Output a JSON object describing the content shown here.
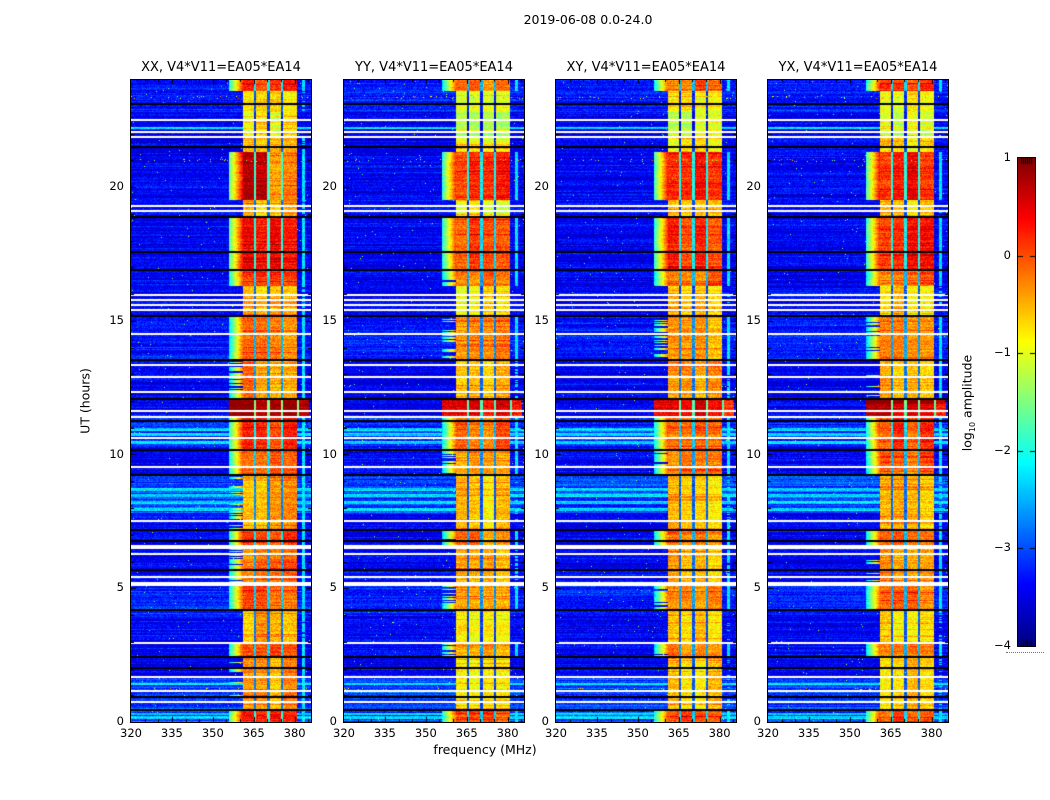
{
  "figure": {
    "suptitle": "2019-06-08 0.0-24.0",
    "background": "#ffffff",
    "text_color": "#000000"
  },
  "chart_data": {
    "type": "heatmap",
    "description": "Four dynamic-spectrum (waterfall) panels of visibility amplitude vs frequency and time for polarization products of baseline V4*V11 = EA05*EA14, 2019-06-08 0-24 UT, jet colormap. Strong RFI band near 361-381 MHz with four sub-columns, white data-gap rows, black flagged rows, and a very bright wide burst near 11.4-12.1 UT.",
    "colormap": "jet",
    "panels": [
      {
        "id": "XX",
        "title": "XX, V4*V11=EA05*EA14",
        "band_offset": 0.3,
        "seed": 101
      },
      {
        "id": "YY",
        "title": "YY, V4*V11=EA05*EA14",
        "band_offset": 0.0,
        "seed": 202
      },
      {
        "id": "XY",
        "title": "XY, V4*V11=EA05*EA14",
        "band_offset": 0.08,
        "seed": 303
      },
      {
        "id": "YX",
        "title": "YX, V4*V11=EA05*EA14",
        "band_offset": 0.15,
        "seed": 404
      }
    ],
    "x_axis": {
      "label": "frequency (MHz)",
      "range": [
        320,
        386
      ],
      "major_ticks": [
        320,
        335,
        350,
        365,
        380
      ],
      "minor_step": 5
    },
    "y_axis": {
      "label": "UT (hours)",
      "range": [
        0,
        24
      ],
      "major_ticks": [
        0,
        5,
        10,
        15,
        20
      ],
      "minor_step": 1
    },
    "colorbar": {
      "label_main": "log",
      "label_sub": "10",
      "label_rest": " amplitude",
      "range": [
        -4,
        1
      ],
      "ticks": [
        1,
        0,
        -1,
        -2,
        -3,
        -4
      ],
      "dash_ticks": [
        0,
        -1,
        -2,
        -3
      ]
    },
    "rfi_band": {
      "f_lo": 361.0,
      "f_hi": 380.7,
      "wide_f_lo": 355.8,
      "wide_f_hi": 385.4,
      "separators": [
        365.45,
        370.45,
        375.45
      ],
      "sep_half_width": 0.45,
      "narrow_line": [
        382.7,
        383.8
      ]
    },
    "band_blocks": [
      {
        "t0": 23.6,
        "t1": 24.0,
        "v": -0.15
      },
      {
        "t0": 22.8,
        "t1": 23.6,
        "v": -0.95
      },
      {
        "t0": 21.9,
        "t1": 22.8,
        "v": -1.25
      },
      {
        "t0": 21.3,
        "t1": 21.9,
        "v": -0.9
      },
      {
        "t0": 19.5,
        "t1": 21.3,
        "v": 0.15,
        "cols": {
          "XX": [
            0.3,
            0.22,
            -0.85,
            -0.7
          ]
        }
      },
      {
        "t0": 18.9,
        "t1": 19.5,
        "v": -0.85
      },
      {
        "t0": 16.9,
        "t1": 18.9,
        "v": 0.02
      },
      {
        "t0": 16.3,
        "t1": 16.9,
        "v": -0.3
      },
      {
        "t0": 15.2,
        "t1": 16.3,
        "v": -0.8
      },
      {
        "t0": 13.5,
        "t1": 15.2,
        "v": -0.45
      },
      {
        "t0": 12.1,
        "t1": 13.5,
        "v": -0.6
      },
      {
        "t0": 11.35,
        "t1": 12.1,
        "v": 0.5,
        "wide": true
      },
      {
        "t0": 10.2,
        "t1": 11.35,
        "v": -0.15
      },
      {
        "t0": 9.2,
        "t1": 10.2,
        "v": -0.35
      },
      {
        "t0": 7.2,
        "t1": 9.2,
        "v": -0.7
      },
      {
        "t0": 6.5,
        "t1": 7.2,
        "v": -0.25
      },
      {
        "t0": 5.2,
        "t1": 6.5,
        "v": -0.6
      },
      {
        "t0": 4.2,
        "t1": 5.2,
        "v": -0.35
      },
      {
        "t0": 3.0,
        "t1": 4.2,
        "v": -0.8
      },
      {
        "t0": 2.4,
        "t1": 3.0,
        "v": -0.35
      },
      {
        "t0": 0.5,
        "t1": 2.4,
        "v": -0.75
      },
      {
        "t0": 0.0,
        "t1": 0.5,
        "v": -0.05
      }
    ],
    "gap_rows": [
      [
        22.5,
        0.09
      ],
      [
        22.06,
        0.09
      ],
      [
        21.87,
        0.09
      ],
      [
        19.29,
        0.09
      ],
      [
        19.1,
        0.09
      ],
      [
        15.96,
        0.08
      ],
      [
        15.78,
        0.08
      ],
      [
        15.59,
        0.08
      ],
      [
        15.4,
        0.08
      ],
      [
        14.5,
        0.09
      ],
      [
        13.35,
        0.09
      ],
      [
        12.9,
        0.08
      ],
      [
        12.34,
        0.09
      ],
      [
        11.63,
        0.09
      ],
      [
        11.4,
        0.08
      ],
      [
        10.62,
        0.09
      ],
      [
        9.53,
        0.09
      ],
      [
        7.51,
        0.1
      ],
      [
        6.54,
        0.16
      ],
      [
        6.28,
        0.09
      ],
      [
        5.42,
        0.09
      ],
      [
        5.16,
        0.16
      ],
      [
        2.95,
        0.1
      ],
      [
        1.68,
        0.08
      ],
      [
        1.16,
        0.09
      ],
      [
        0.75,
        0.09
      ]
    ],
    "flagged_rows": [
      [
        23.1,
        0.06
      ],
      [
        21.5,
        0.06
      ],
      [
        18.88,
        0.07
      ],
      [
        17.57,
        0.05
      ],
      [
        16.9,
        0.05
      ],
      [
        15.18,
        0.06
      ],
      [
        13.53,
        0.05
      ],
      [
        12.07,
        0.07
      ],
      [
        11.25,
        0.06
      ],
      [
        10.17,
        0.06
      ],
      [
        9.23,
        0.05
      ],
      [
        7.18,
        0.06
      ],
      [
        6.77,
        0.05
      ],
      [
        5.68,
        0.05
      ],
      [
        4.19,
        0.05
      ],
      [
        2.43,
        0.06
      ],
      [
        2.02,
        0.05
      ],
      [
        0.93,
        0.06
      ],
      [
        0.45,
        0.05
      ]
    ],
    "bright_rows": [
      [
        22.2,
        0.1
      ],
      [
        10.95,
        0.11
      ],
      [
        10.75,
        0.1
      ],
      [
        10.45,
        0.1
      ],
      [
        8.7,
        0.1
      ],
      [
        8.45,
        0.11
      ],
      [
        8.2,
        0.1
      ],
      [
        7.95,
        0.1
      ],
      [
        1.42,
        0.08
      ],
      [
        0.3,
        0.11
      ],
      [
        0.18,
        0.1
      ]
    ],
    "bg_bright": [
      [
        0,
        1.7,
        0.5
      ],
      [
        4.0,
        5.2,
        0.25
      ],
      [
        7.8,
        9.2,
        0.55
      ],
      [
        10.3,
        11.35,
        0.4
      ],
      [
        13.5,
        15.2,
        0.2
      ],
      [
        22.8,
        24,
        0.25
      ]
    ],
    "speckle_rows": [
      1.23,
      21.0,
      23.35
    ]
  }
}
